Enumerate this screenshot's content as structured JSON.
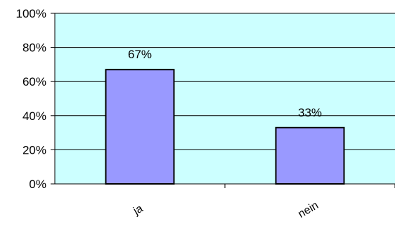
{
  "chart_data": {
    "type": "bar",
    "categories": [
      "ja",
      "nein"
    ],
    "values": [
      67,
      33
    ],
    "data_labels": [
      "67%",
      "33%"
    ],
    "title": "",
    "xlabel": "",
    "ylabel": "",
    "ylim": [
      0,
      100
    ],
    "yticks": [
      0,
      20,
      40,
      60,
      80,
      100
    ],
    "ytick_labels": [
      "0%",
      "20%",
      "40%",
      "60%",
      "80%",
      "100%"
    ],
    "grid": true,
    "legend": "none",
    "colors": {
      "plot_background": "#ccffff",
      "bar_fill": "#9999ff",
      "bar_stroke": "#000000",
      "grid": "#000000"
    }
  }
}
